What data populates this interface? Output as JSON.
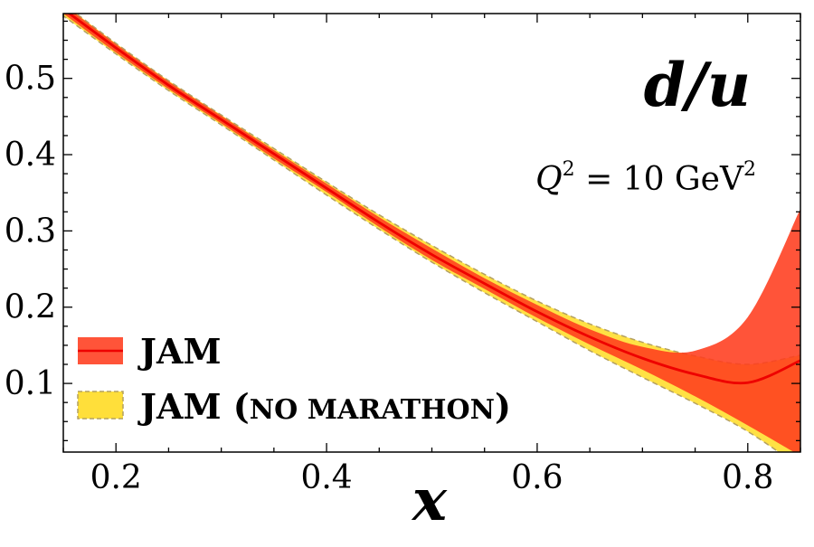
{
  "chart_data": {
    "type": "area",
    "title": "",
    "xlabel": "x",
    "ylabel": "",
    "xlim": [
      0.15,
      0.85
    ],
    "ylim": [
      0.01,
      0.585
    ],
    "xticks": [
      0.2,
      0.4,
      0.6,
      0.8
    ],
    "xtick_labels": [
      "0.2",
      "0.4",
      "0.6",
      "0.8"
    ],
    "yticks": [
      0.1,
      0.2,
      0.3,
      0.4,
      0.5
    ],
    "ytick_labels": [
      "0.1",
      "0.2",
      "0.3",
      "0.4",
      "0.5"
    ],
    "grid": false,
    "legend_position": "bottom-left",
    "annotations": {
      "corner_label": "d/u",
      "scale_prefix": "Q",
      "scale_power": "2",
      "scale_eq": " = 10 GeV",
      "scale_unit_power": "2"
    },
    "series": [
      {
        "name": "JAM (no MARATHON)",
        "legend_main": "JAM (",
        "legend_smallcaps": "no marathon",
        "legend_close": ")",
        "kind": "band",
        "fill_color": "#ffdf3a",
        "edge_color": "#b4a060",
        "x": [
          0.15,
          0.2,
          0.25,
          0.3,
          0.35,
          0.4,
          0.45,
          0.5,
          0.55,
          0.6,
          0.65,
          0.7,
          0.75,
          0.8,
          0.85
        ],
        "upper": [
          0.598,
          0.546,
          0.497,
          0.452,
          0.408,
          0.364,
          0.321,
          0.281,
          0.243,
          0.208,
          0.178,
          0.154,
          0.136,
          0.125,
          0.137
        ],
        "lower": [
          0.582,
          0.532,
          0.484,
          0.439,
          0.393,
          0.347,
          0.302,
          0.259,
          0.219,
          0.181,
          0.143,
          0.108,
          0.074,
          0.037,
          -0.01
        ]
      },
      {
        "name": "JAM",
        "legend_main": "JAM",
        "kind": "band_with_line",
        "fill_color": "#ff3c1e",
        "line_color": "#ee0000",
        "x": [
          0.15,
          0.2,
          0.25,
          0.3,
          0.35,
          0.4,
          0.45,
          0.5,
          0.55,
          0.6,
          0.65,
          0.7,
          0.75,
          0.8,
          0.85
        ],
        "upper": [
          0.597,
          0.545,
          0.496,
          0.451,
          0.406,
          0.362,
          0.318,
          0.277,
          0.238,
          0.203,
          0.171,
          0.148,
          0.143,
          0.187,
          0.329
        ],
        "lower": [
          0.585,
          0.534,
          0.486,
          0.441,
          0.395,
          0.351,
          0.305,
          0.262,
          0.224,
          0.186,
          0.151,
          0.118,
          0.083,
          0.045,
          0.005
        ],
        "center": [
          0.591,
          0.54,
          0.491,
          0.446,
          0.401,
          0.356,
          0.311,
          0.269,
          0.231,
          0.194,
          0.161,
          0.133,
          0.112,
          0.101,
          0.13
        ]
      }
    ]
  }
}
